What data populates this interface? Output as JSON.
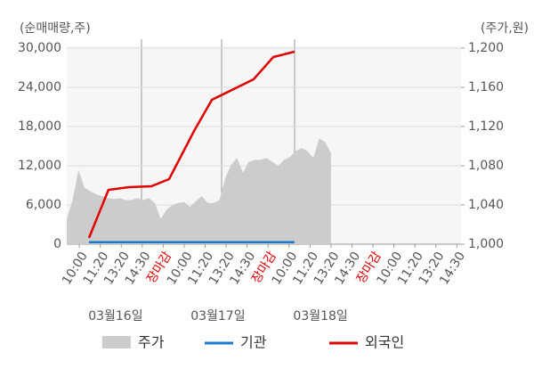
{
  "chart_data": {
    "type": "combo",
    "ylabel": "(순매매량,주)",
    "y2label": "(주가,원)",
    "ylim": [
      0,
      30000
    ],
    "yticks": [
      0,
      {
        "value": 6000,
        "label": "6,000"
      },
      {
        "value": 12000,
        "label": "12,000"
      },
      {
        "value": 18000,
        "label": "18,000"
      },
      {
        "value": 24000,
        "label": "24,000"
      },
      {
        "value": 30000,
        "label": "30,000"
      }
    ],
    "y2lim": [
      1000,
      1200
    ],
    "y2ticks": [
      {
        "value": 1000,
        "label": "1,000"
      },
      {
        "value": 1040,
        "label": "1,040"
      },
      {
        "value": 1080,
        "label": "1,080"
      },
      {
        "value": 1120,
        "label": "1,120"
      },
      {
        "value": 1160,
        "label": "1,160"
      },
      {
        "value": 1200,
        "label": "1,200"
      }
    ],
    "xlim": [
      -0.6,
      18.2
    ],
    "xticks": [
      {
        "value": 0,
        "label": "10:00"
      },
      {
        "value": 1,
        "label": "11:20"
      },
      {
        "value": 2,
        "label": "13:20"
      },
      {
        "value": 3,
        "label": "14:30"
      },
      {
        "value": 4,
        "label": "장마감",
        "color": "#e00000"
      },
      {
        "value": 5,
        "label": "10:00"
      },
      {
        "value": 6,
        "label": "11:20"
      },
      {
        "value": 7,
        "label": "13:20"
      },
      {
        "value": 8,
        "label": "14:30"
      },
      {
        "value": 9,
        "label": "장마감",
        "color": "#e00000"
      },
      {
        "value": 10,
        "label": "10:00"
      },
      {
        "value": 11,
        "label": "11:20"
      },
      {
        "value": 12,
        "label": "13:20"
      },
      {
        "value": 13,
        "label": "14:30"
      },
      {
        "value": 14,
        "label": "장마감",
        "color": "#e00000"
      },
      {
        "value": 15,
        "label": "10:00"
      },
      {
        "value": 16,
        "label": "11:20"
      },
      {
        "value": 17,
        "label": "13:20"
      },
      {
        "value": 18,
        "label": "14:30"
      }
    ],
    "date_labels": [
      {
        "value": 1.73,
        "label": "03월16일"
      },
      {
        "value": 6.61,
        "label": "03월17일"
      },
      {
        "value": 11.5,
        "label": "03월18일"
      }
    ],
    "grid": true,
    "series": [
      {
        "name": "주가",
        "kind": "area",
        "axis": "y2",
        "color": "#cccccc",
        "x": [
          -0.6,
          -0.32,
          -0.04,
          0.24,
          0.52,
          0.8,
          1.08,
          1.36,
          1.64,
          1.92,
          2.2,
          2.48,
          2.76,
          3.04,
          3.32,
          3.6,
          3.88,
          4.16,
          4.44,
          4.72,
          5.0,
          5.28,
          5.56,
          5.84,
          6.12,
          6.4,
          6.68,
          6.96,
          7.24,
          7.52,
          7.8,
          8.08,
          8.36,
          8.64,
          8.92,
          9.2,
          9.48,
          9.76,
          10.04,
          10.32,
          10.6,
          10.88,
          11.16,
          11.44,
          11.72,
          12.0
        ],
        "values": [
          1026,
          1045,
          1076,
          1058,
          1054,
          1051,
          1049,
          1047,
          1046,
          1047,
          1045,
          1045,
          1047,
          1045,
          1047,
          1042,
          1026,
          1035,
          1040,
          1042,
          1043,
          1038,
          1044,
          1049,
          1042,
          1042,
          1045,
          1067,
          1081,
          1088,
          1073,
          1084,
          1086,
          1086,
          1088,
          1084,
          1080,
          1086,
          1089,
          1095,
          1098,
          1095,
          1088,
          1108,
          1104,
          1093
        ]
      },
      {
        "name": "기관",
        "kind": "line",
        "color": "#1a7bd0",
        "x": [
          0.46,
          10.26
        ],
        "values": [
          300,
          300
        ]
      },
      {
        "name": "외국인",
        "kind": "line",
        "color": "#e00000",
        "x": [
          0.46,
          1.39,
          2.37,
          3.43,
          4.28,
          5.47,
          6.32,
          8.31,
          9.25,
          10.26
        ],
        "values": [
          955,
          8318,
          8727,
          8864,
          9955,
          17318,
          22091,
          25227,
          28636,
          29455
        ]
      }
    ]
  }
}
